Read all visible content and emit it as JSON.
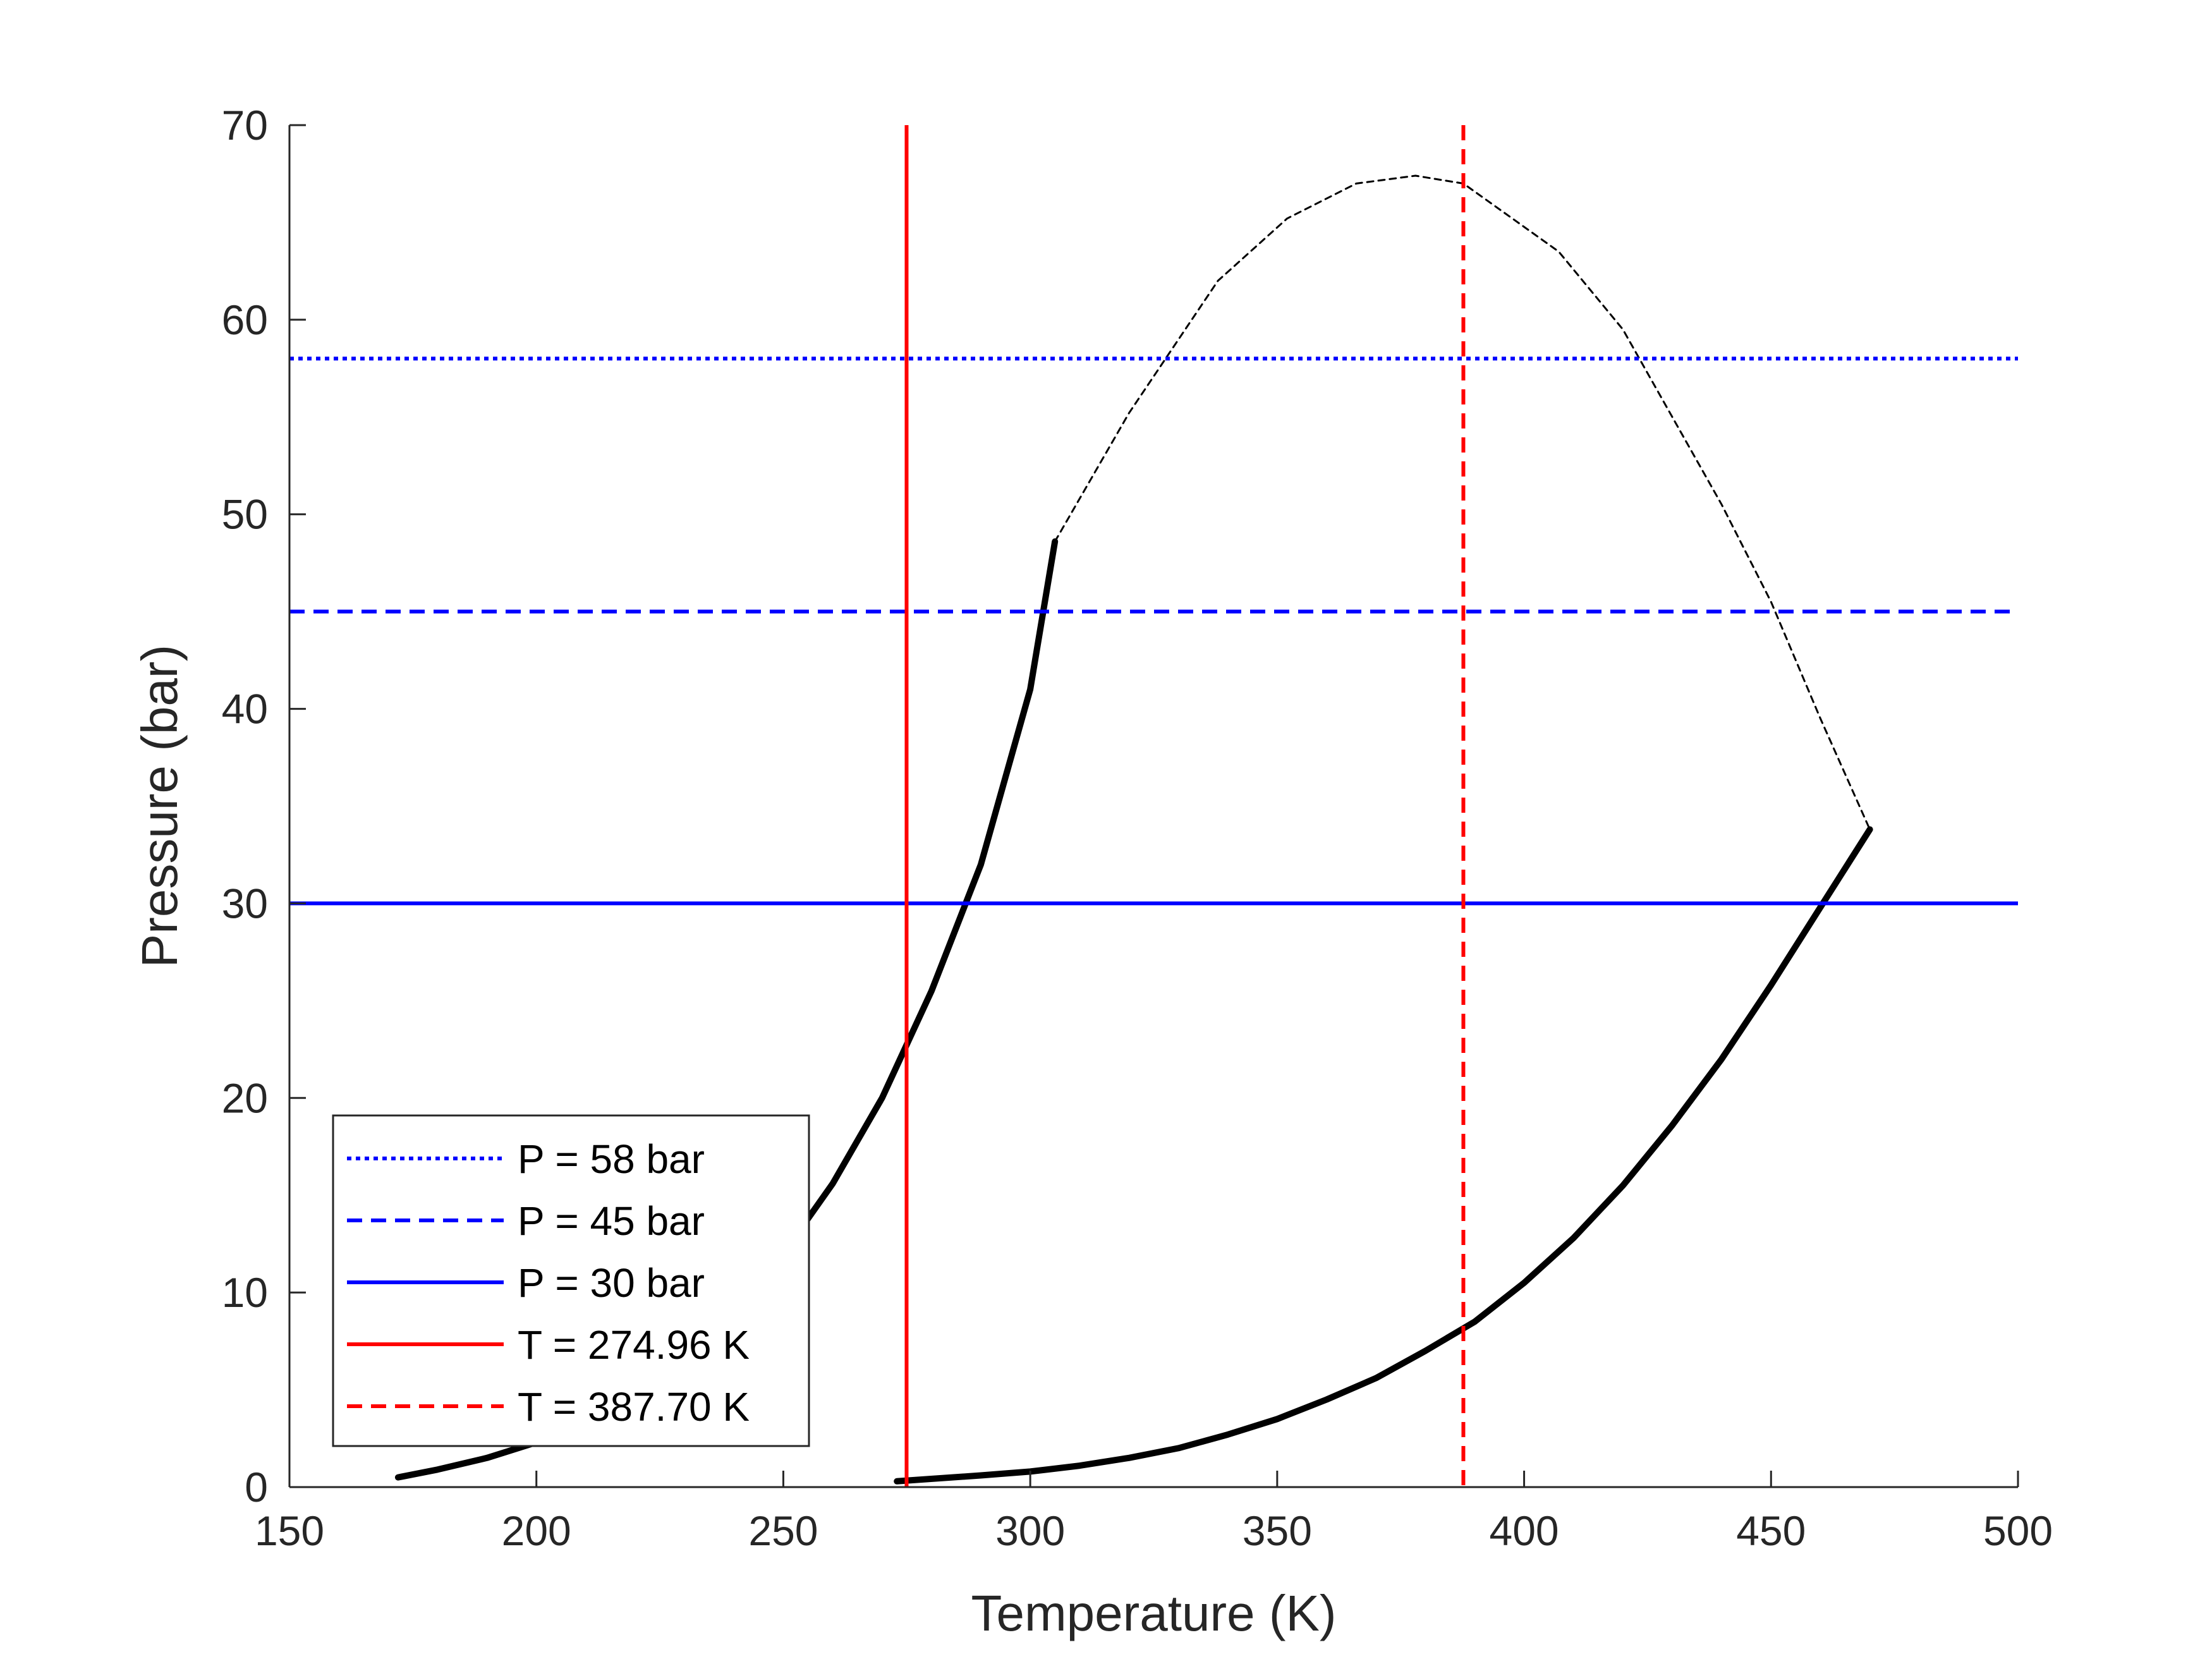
{
  "chart_data": {
    "type": "line",
    "title": "",
    "xlabel": "Temperature (K)",
    "ylabel": "Pressure (bar)",
    "xlim": [
      150,
      500
    ],
    "ylim": [
      0,
      70
    ],
    "xticks": [
      150,
      200,
      250,
      300,
      350,
      400,
      450,
      500
    ],
    "yticks": [
      0,
      10,
      20,
      30,
      40,
      50,
      60,
      70
    ],
    "grid": false,
    "legend_position": "bottom-left",
    "legend": [
      {
        "label": "P = 58 bar",
        "color": "#0000ff",
        "style": "dotted"
      },
      {
        "label": "P = 45 bar",
        "color": "#0000ff",
        "style": "dashed"
      },
      {
        "label": "P = 30 bar",
        "color": "#0000ff",
        "style": "solid"
      },
      {
        "label": "T = 274.96 K",
        "color": "#ff0000",
        "style": "solid"
      },
      {
        "label": "T = 387.70 K",
        "color": "#ff0000",
        "style": "dashed"
      }
    ],
    "horizontal_lines": [
      {
        "y": 58,
        "color": "#0000ff",
        "style": "dotted"
      },
      {
        "y": 45,
        "color": "#0000ff",
        "style": "dashed"
      },
      {
        "y": 30,
        "color": "#0000ff",
        "style": "solid"
      }
    ],
    "vertical_lines": [
      {
        "x": 274.96,
        "color": "#ff0000",
        "style": "solid"
      },
      {
        "x": 387.7,
        "color": "#ff0000",
        "style": "dashed"
      }
    ],
    "curves": [
      {
        "color": "#000000",
        "style": "solid",
        "weight": "thick",
        "x": [
          172,
          180,
          190,
          200,
          210,
          220,
          230,
          240,
          250,
          260,
          270,
          280,
          290,
          300,
          305
        ],
        "y": [
          0.5,
          0.9,
          1.5,
          2.3,
          3.5,
          5.0,
          6.9,
          9.2,
          12.0,
          15.6,
          20.0,
          25.5,
          32.0,
          41.0,
          48.6
        ]
      },
      {
        "color": "#000000",
        "style": "solid",
        "weight": "thick",
        "x": [
          273,
          290,
          300,
          310,
          320,
          330,
          340,
          350,
          360,
          370,
          380,
          390,
          400,
          410,
          420,
          430,
          440,
          450,
          460,
          470
        ],
        "y": [
          0.3,
          0.6,
          0.8,
          1.1,
          1.5,
          2.0,
          2.7,
          3.5,
          4.5,
          5.6,
          7.0,
          8.5,
          10.5,
          12.8,
          15.5,
          18.6,
          22.0,
          25.8,
          29.8,
          33.8
        ]
      },
      {
        "color": "#000000",
        "style": "dashed",
        "weight": "thin",
        "x": [
          305,
          320,
          338,
          352,
          366,
          378,
          387.7,
          407,
          420,
          440,
          450,
          460,
          470
        ],
        "y": [
          48.6,
          55.2,
          62.0,
          65.2,
          67.0,
          67.4,
          67.0,
          63.5,
          59.5,
          50.5,
          45.5,
          39.5,
          33.8
        ]
      }
    ]
  }
}
